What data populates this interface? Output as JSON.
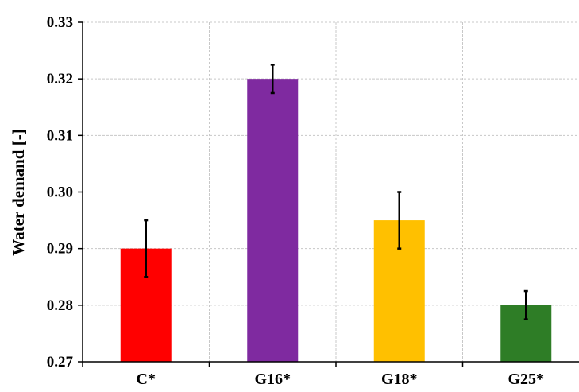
{
  "chart_data": {
    "type": "bar",
    "title": "",
    "xlabel": "",
    "ylabel": "Water demand [-]",
    "categories": [
      "C*",
      "G16*",
      "G18*",
      "G25*"
    ],
    "values": [
      0.29,
      0.32,
      0.295,
      0.28
    ],
    "errors": [
      0.005,
      0.0025,
      0.005,
      0.0025
    ],
    "colors": [
      "#ff0000",
      "#7f2aa0",
      "#ffc000",
      "#2e7d26"
    ],
    "ylim": [
      0.27,
      0.33
    ],
    "yticks": [
      0.27,
      0.28,
      0.29,
      0.3,
      0.31,
      0.32,
      0.33
    ],
    "ytick_labels": [
      "0.27",
      "0.28",
      "0.29",
      "0.30",
      "0.31",
      "0.32",
      "0.33"
    ],
    "grid": true,
    "legend": "none"
  }
}
